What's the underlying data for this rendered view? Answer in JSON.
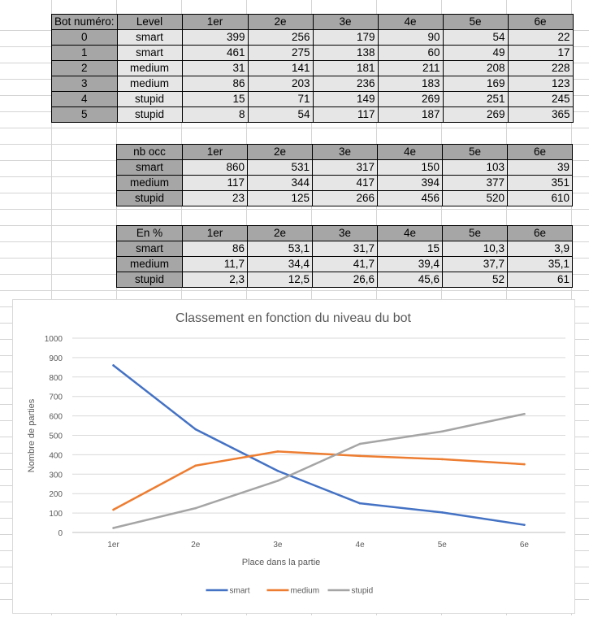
{
  "table1": {
    "headers": [
      "Bot numéro:",
      "Level",
      "1er",
      "2e",
      "3e",
      "4e",
      "5e",
      "6e"
    ],
    "rows": [
      {
        "id": "0",
        "level": "smart",
        "values": [
          "399",
          "256",
          "179",
          "90",
          "54",
          "22"
        ]
      },
      {
        "id": "1",
        "level": "smart",
        "values": [
          "461",
          "275",
          "138",
          "60",
          "49",
          "17"
        ]
      },
      {
        "id": "2",
        "level": "medium",
        "values": [
          "31",
          "141",
          "181",
          "211",
          "208",
          "228"
        ]
      },
      {
        "id": "3",
        "level": "medium",
        "values": [
          "86",
          "203",
          "236",
          "183",
          "169",
          "123"
        ]
      },
      {
        "id": "4",
        "level": "stupid",
        "values": [
          "15",
          "71",
          "149",
          "269",
          "251",
          "245"
        ]
      },
      {
        "id": "5",
        "level": "stupid",
        "values": [
          "8",
          "54",
          "117",
          "187",
          "269",
          "365"
        ]
      }
    ]
  },
  "table2": {
    "headers": [
      "nb occ",
      "1er",
      "2e",
      "3e",
      "4e",
      "5e",
      "6e"
    ],
    "rows": [
      {
        "level": "smart",
        "values": [
          "860",
          "531",
          "317",
          "150",
          "103",
          "39"
        ]
      },
      {
        "level": "medium",
        "values": [
          "117",
          "344",
          "417",
          "394",
          "377",
          "351"
        ]
      },
      {
        "level": "stupid",
        "values": [
          "23",
          "125",
          "266",
          "456",
          "520",
          "610"
        ]
      }
    ]
  },
  "table3": {
    "headers": [
      "En %",
      "1er",
      "2e",
      "3e",
      "4e",
      "5e",
      "6e"
    ],
    "rows": [
      {
        "level": "smart",
        "values": [
          "86",
          "53,1",
          "31,7",
          "15",
          "10,3",
          "3,9"
        ]
      },
      {
        "level": "medium",
        "values": [
          "11,7",
          "34,4",
          "41,7",
          "39,4",
          "37,7",
          "35,1"
        ]
      },
      {
        "level": "stupid",
        "values": [
          "2,3",
          "12,5",
          "26,6",
          "45,6",
          "52",
          "61"
        ]
      }
    ]
  },
  "chart_data": {
    "type": "line",
    "title": "Classement en fonction du niveau du bot",
    "xlabel": "Place dans la partie",
    "ylabel": "Nombre de parties",
    "categories": [
      "1er",
      "2e",
      "3e",
      "4e",
      "5e",
      "6e"
    ],
    "ylim": [
      0,
      1000
    ],
    "yticks": [
      0,
      100,
      200,
      300,
      400,
      500,
      600,
      700,
      800,
      900,
      1000
    ],
    "grid": true,
    "legend_position": "bottom",
    "series": [
      {
        "name": "smart",
        "color": "#4472c4",
        "values": [
          860,
          531,
          317,
          150,
          103,
          39
        ]
      },
      {
        "name": "medium",
        "color": "#ed7d31",
        "values": [
          117,
          344,
          417,
          394,
          377,
          351
        ]
      },
      {
        "name": "stupid",
        "color": "#a5a5a5",
        "values": [
          23,
          125,
          266,
          456,
          520,
          610
        ]
      }
    ]
  }
}
